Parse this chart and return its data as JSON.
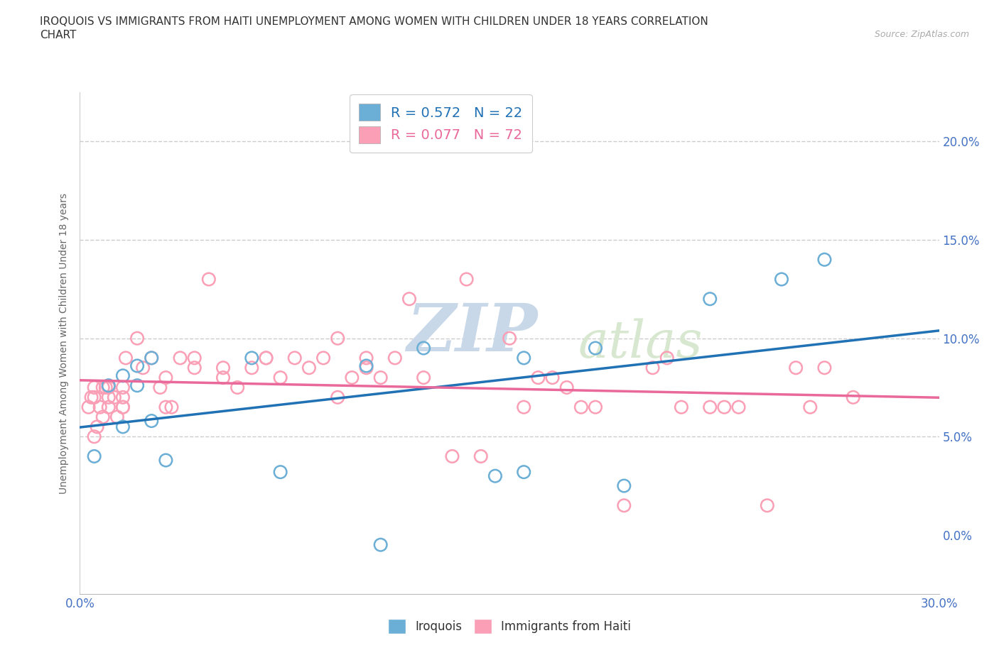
{
  "title_line1": "IROQUOIS VS IMMIGRANTS FROM HAITI UNEMPLOYMENT AMONG WOMEN WITH CHILDREN UNDER 18 YEARS CORRELATION",
  "title_line2": "CHART",
  "source_text": "Source: ZipAtlas.com",
  "ylabel": "Unemployment Among Women with Children Under 18 years",
  "xlim": [
    0.0,
    0.3
  ],
  "ylim": [
    -0.03,
    0.225
  ],
  "xticks": [
    0.0,
    0.05,
    0.1,
    0.15,
    0.2,
    0.25,
    0.3
  ],
  "xtick_labels": [
    "0.0%",
    "",
    "",
    "",
    "",
    "",
    "30.0%"
  ],
  "yticks": [
    0.0,
    0.05,
    0.1,
    0.15,
    0.2
  ],
  "ytick_labels": [
    "0.0%",
    "5.0%",
    "10.0%",
    "15.0%",
    "20.0%"
  ],
  "right_ytick_labels": [
    "",
    "5.0%",
    "10.0%",
    "15.0%",
    "20.0%"
  ],
  "grid_yticks": [
    0.05,
    0.1,
    0.15,
    0.2
  ],
  "iroquois_color": "#6baed6",
  "haiti_color": "#fa9fb5",
  "iroquois_line_color": "#2171b5",
  "haiti_line_color": "#e8699a",
  "legend_R_iroquois": "R = 0.572",
  "legend_N_iroquois": "N = 22",
  "legend_R_haiti": "R = 0.077",
  "legend_N_haiti": "N = 72",
  "legend_label_iroquois": "Iroquois",
  "legend_label_haiti": "Immigrants from Haiti",
  "watermark_zip": "ZIP",
  "watermark_atlas": "atlas",
  "iroquois_x": [
    0.005,
    0.01,
    0.015,
    0.015,
    0.02,
    0.02,
    0.025,
    0.025,
    0.03,
    0.06,
    0.07,
    0.1,
    0.105,
    0.12,
    0.145,
    0.155,
    0.155,
    0.18,
    0.19,
    0.22,
    0.245,
    0.26
  ],
  "iroquois_y": [
    0.04,
    0.076,
    0.081,
    0.055,
    0.076,
    0.086,
    0.058,
    0.09,
    0.038,
    0.09,
    0.032,
    0.086,
    -0.005,
    0.095,
    0.03,
    0.032,
    0.09,
    0.095,
    0.025,
    0.12,
    0.13,
    0.14
  ],
  "haiti_x": [
    0.003,
    0.004,
    0.005,
    0.005,
    0.005,
    0.006,
    0.007,
    0.008,
    0.008,
    0.009,
    0.01,
    0.01,
    0.01,
    0.012,
    0.013,
    0.015,
    0.015,
    0.015,
    0.015,
    0.016,
    0.02,
    0.022,
    0.025,
    0.028,
    0.03,
    0.03,
    0.032,
    0.035,
    0.04,
    0.04,
    0.045,
    0.05,
    0.05,
    0.055,
    0.06,
    0.065,
    0.065,
    0.07,
    0.075,
    0.08,
    0.085,
    0.09,
    0.09,
    0.095,
    0.1,
    0.1,
    0.105,
    0.11,
    0.115,
    0.12,
    0.13,
    0.135,
    0.14,
    0.15,
    0.155,
    0.16,
    0.165,
    0.17,
    0.175,
    0.18,
    0.19,
    0.2,
    0.205,
    0.21,
    0.22,
    0.225,
    0.23,
    0.24,
    0.25,
    0.255,
    0.26,
    0.27
  ],
  "haiti_y": [
    0.065,
    0.07,
    0.07,
    0.075,
    0.05,
    0.055,
    0.065,
    0.075,
    0.06,
    0.075,
    0.065,
    0.07,
    0.075,
    0.07,
    0.06,
    0.065,
    0.07,
    0.075,
    0.065,
    0.09,
    0.1,
    0.085,
    0.09,
    0.075,
    0.065,
    0.08,
    0.065,
    0.09,
    0.085,
    0.09,
    0.13,
    0.08,
    0.085,
    0.075,
    0.085,
    0.09,
    0.09,
    0.08,
    0.09,
    0.085,
    0.09,
    0.1,
    0.07,
    0.08,
    0.09,
    0.085,
    0.08,
    0.09,
    0.12,
    0.08,
    0.04,
    0.13,
    0.04,
    0.1,
    0.065,
    0.08,
    0.08,
    0.075,
    0.065,
    0.065,
    0.015,
    0.085,
    0.09,
    0.065,
    0.065,
    0.065,
    0.065,
    0.015,
    0.085,
    0.065,
    0.085,
    0.07
  ]
}
